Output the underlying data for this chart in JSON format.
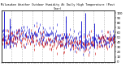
{
  "title": "Milwaukee Weather Outdoor Humidity At Daily High Temperature (Past Year)",
  "ylabel_right_values": [
    100,
    90,
    80,
    70,
    60,
    50,
    40,
    30,
    20,
    10,
    0
  ],
  "ylim": [
    0,
    105
  ],
  "xlim": [
    0,
    365
  ],
  "background_color": "#ffffff",
  "grid_color": "#888888",
  "blue_color": "#0000cc",
  "red_color": "#cc0000",
  "seed": 42,
  "n_points": 365,
  "spike_positions": [
    10,
    28,
    208,
    258,
    272,
    300
  ],
  "spike_heights": [
    103,
    88,
    93,
    83,
    100,
    78
  ],
  "spike_bottoms": [
    28,
    28,
    28,
    28,
    28,
    28
  ],
  "n_gridlines": 11,
  "data_y_center": 45,
  "data_y_spread": 18
}
